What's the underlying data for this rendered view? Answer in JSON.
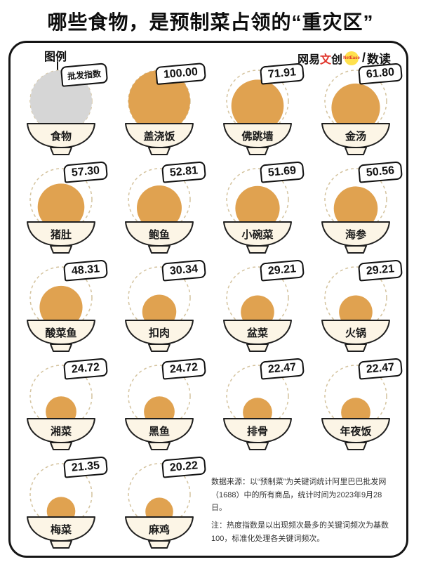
{
  "title": "哪些食物，是预制菜占领的“重灾区”",
  "legend": {
    "label": "图例",
    "tag": "批发指数",
    "name": "食物"
  },
  "logo": {
    "part1": "网易",
    "part2": "文",
    "part3": "创",
    "badge": "NetEase",
    "slash": "/",
    "product": "数读"
  },
  "notes": {
    "source": "数据来源：以“预制菜”为关键词统计阿里巴巴批发网（1688）中的所有商品，统计时间为2023年9月28日。",
    "note": "注：热度指数是以出现频次最多的关键词频次为基数100，标准化处理各关键词频次。"
  },
  "colors": {
    "dome": "#E0A250",
    "legend_dome": "#D6D6D6",
    "bowl": "#FCF5E6",
    "outline": "#1F1F1F",
    "dash": "#D4C39E",
    "badge_yellow": "#FFE14D",
    "accent_red": "#E0342B"
  },
  "chart_data": {
    "type": "bar",
    "title": "哪些食物，是预制菜占领的“重灾区”",
    "value_label": "批发指数",
    "categories": [
      "盖浇饭",
      "佛跳墙",
      "金汤",
      "猪肚",
      "鲍鱼",
      "小碗菜",
      "海参",
      "酸菜鱼",
      "扣肉",
      "盆菜",
      "火锅",
      "湘菜",
      "黑鱼",
      "排骨",
      "年夜饭",
      "梅菜",
      "麻鸡"
    ],
    "values": [
      100.0,
      71.91,
      61.8,
      57.3,
      52.81,
      51.69,
      50.56,
      48.31,
      30.34,
      29.21,
      29.21,
      24.72,
      24.72,
      22.47,
      22.47,
      21.35,
      20.22
    ],
    "ylim": [
      0,
      100
    ],
    "layout": "pictogram-grid-4-columns, circle area encodes value, legend bowl first"
  }
}
